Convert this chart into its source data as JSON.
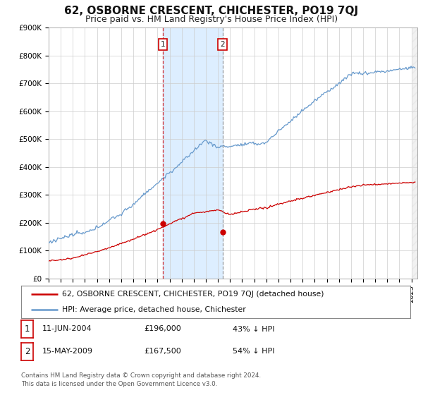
{
  "title": "62, OSBORNE CRESCENT, CHICHESTER, PO19 7QJ",
  "subtitle": "Price paid vs. HM Land Registry's House Price Index (HPI)",
  "ylim": [
    0,
    900000
  ],
  "yticks": [
    0,
    100000,
    200000,
    300000,
    400000,
    500000,
    600000,
    700000,
    800000,
    900000
  ],
  "ytick_labels": [
    "£0",
    "£100K",
    "£200K",
    "£300K",
    "£400K",
    "£500K",
    "£600K",
    "£700K",
    "£800K",
    "£900K"
  ],
  "xlim_start": 1995.0,
  "xlim_end": 2025.5,
  "hpi_color": "#6699cc",
  "price_color": "#cc0000",
  "shade_color": "#ddeeff",
  "transaction1_date": 2004.44,
  "transaction1_price": 196000,
  "transaction1_label": "1",
  "transaction2_date": 2009.37,
  "transaction2_price": 167500,
  "transaction2_label": "2",
  "legend_label_price": "62, OSBORNE CRESCENT, CHICHESTER, PO19 7QJ (detached house)",
  "legend_label_hpi": "HPI: Average price, detached house, Chichester",
  "table_row1": [
    "1",
    "11-JUN-2004",
    "£196,000",
    "43% ↓ HPI"
  ],
  "table_row2": [
    "2",
    "15-MAY-2009",
    "£167,500",
    "54% ↓ HPI"
  ],
  "footnote": "Contains HM Land Registry data © Crown copyright and database right 2024.\nThis data is licensed under the Open Government Licence v3.0.",
  "background_color": "#ffffff",
  "grid_color": "#cccccc",
  "title_fontsize": 11,
  "subtitle_fontsize": 9,
  "tick_fontsize": 7.5
}
